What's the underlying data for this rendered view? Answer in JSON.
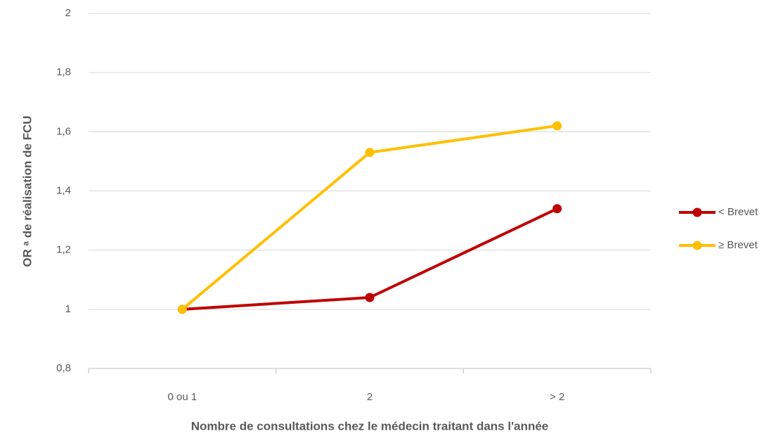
{
  "chart_data": {
    "type": "line",
    "xlabel": "Nombre de consultations chez le médecin traitant dans l'année",
    "ylabel": "OR ᵃ de réalisation de FCU",
    "categories": [
      "0 ou 1",
      "2",
      "> 2"
    ],
    "series": [
      {
        "name": "< Brevet",
        "color": "#c00000",
        "values": [
          1,
          1.04,
          1.34
        ]
      },
      {
        "name": "≥ Brevet",
        "color": "#ffc000",
        "values": [
          1,
          1.53,
          1.62
        ]
      }
    ],
    "ylim": [
      0.8,
      2
    ],
    "yticks": [
      {
        "value": 0.8,
        "label": "0,8"
      },
      1,
      {
        "value": 1.2,
        "label": "1,2"
      },
      {
        "value": 1.4,
        "label": "1,4"
      },
      {
        "value": 1.6,
        "label": "1,6"
      },
      {
        "value": 1.8,
        "label": "1,8"
      },
      2
    ],
    "grid": true,
    "legend": "right"
  }
}
